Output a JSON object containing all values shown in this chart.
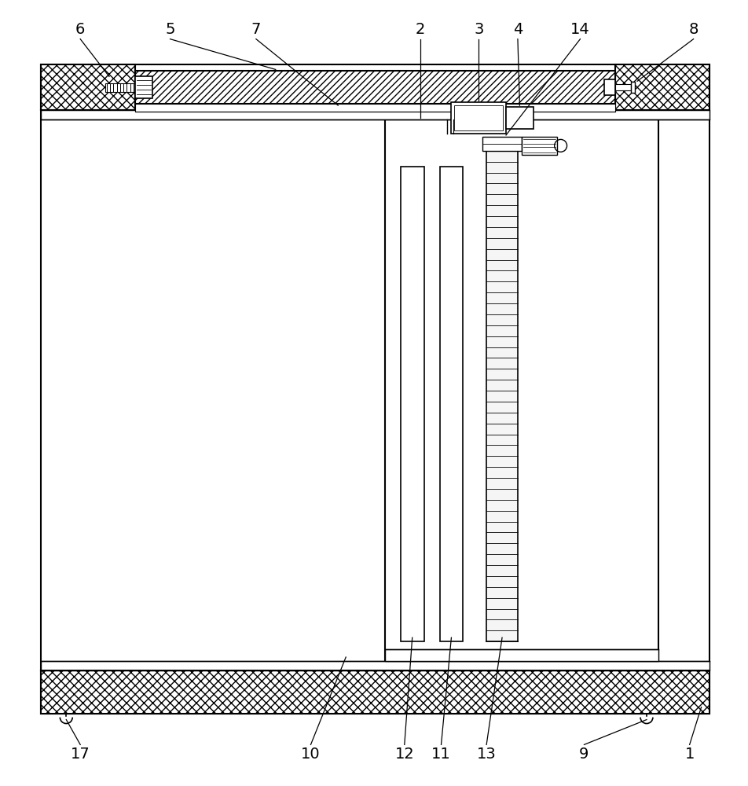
{
  "bg_color": "#ffffff",
  "line_color": "#000000",
  "fig_width": 9.53,
  "fig_height": 10.0
}
